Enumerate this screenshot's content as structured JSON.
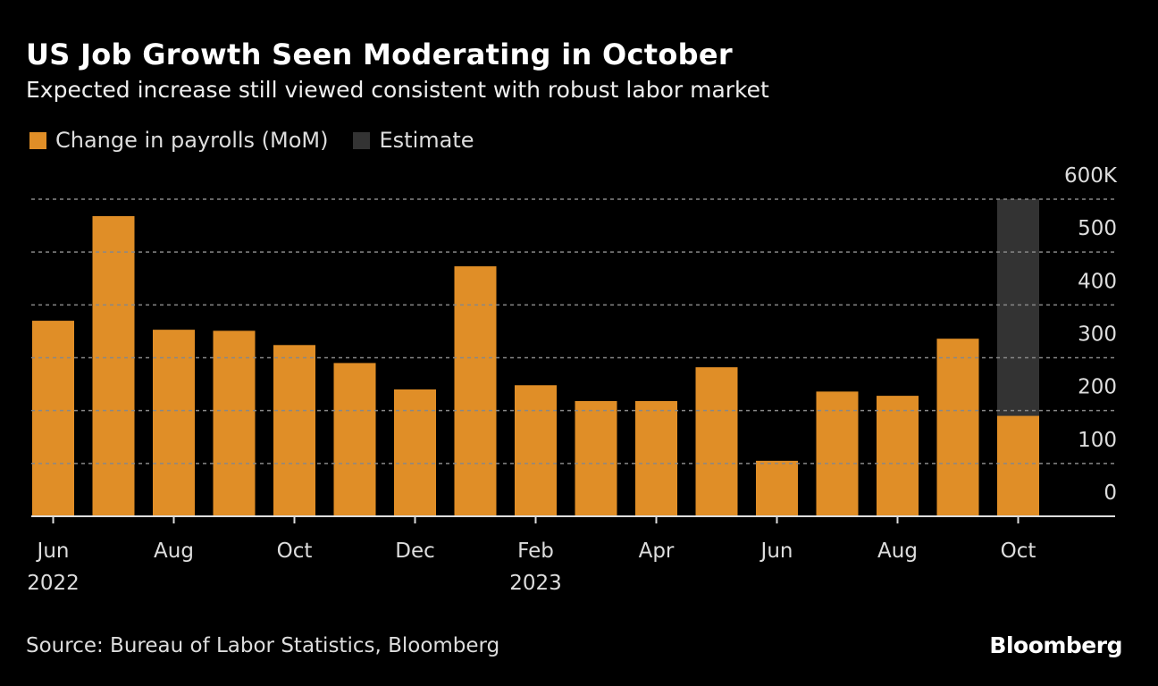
{
  "title": "US Job Growth Seen Moderating in October",
  "subtitle": "Expected increase still viewed consistent with robust labor market",
  "legend": [
    {
      "label": "Change in payrolls (MoM)",
      "color": "#e08e27"
    },
    {
      "label": "Estimate",
      "color": "#333333"
    }
  ],
  "source": "Source: Bureau of Labor Statistics, Bloomberg",
  "logo": "Bloomberg",
  "chart_data": {
    "type": "bar",
    "title": "US Job Growth Seen Moderating in October",
    "categories": [
      "Jun 2022",
      "Jul 2022",
      "Aug 2022",
      "Sep 2022",
      "Oct 2022",
      "Nov 2022",
      "Dec 2022",
      "Jan 2023",
      "Feb 2023",
      "Mar 2023",
      "Apr 2023",
      "May 2023",
      "Jun 2023",
      "Jul 2023",
      "Aug 2023",
      "Sep 2023",
      "Oct 2023"
    ],
    "series": [
      {
        "name": "Change in payrolls (MoM)",
        "color": "#e08e27",
        "values": [
          370,
          568,
          353,
          351,
          324,
          290,
          240,
          473,
          248,
          218,
          218,
          282,
          105,
          236,
          228,
          336,
          190
        ]
      }
    ],
    "estimate_category": "Oct 2023",
    "estimate_color": "#333333",
    "x_tick_labels": [
      {
        "category": "Jun 2022",
        "line1": "Jun",
        "line2": "2022"
      },
      {
        "category": "Aug 2022",
        "line1": "Aug",
        "line2": ""
      },
      {
        "category": "Oct 2022",
        "line1": "Oct",
        "line2": ""
      },
      {
        "category": "Dec 2022",
        "line1": "Dec",
        "line2": ""
      },
      {
        "category": "Feb 2023",
        "line1": "Feb",
        "line2": "2023"
      },
      {
        "category": "Apr 2023",
        "line1": "Apr",
        "line2": ""
      },
      {
        "category": "Jun 2023",
        "line1": "Jun",
        "line2": ""
      },
      {
        "category": "Aug 2023",
        "line1": "Aug",
        "line2": ""
      },
      {
        "category": "Oct 2023",
        "line1": "Oct",
        "line2": ""
      }
    ],
    "y_ticks": [
      0,
      100,
      200,
      300,
      400,
      500,
      600
    ],
    "y_tick_labels": [
      "0",
      "100",
      "200",
      "300",
      "400",
      "500",
      "600K"
    ],
    "ylim": [
      0,
      600
    ],
    "y_axis_side": "right",
    "grid": true,
    "legend_position": "top-left"
  }
}
